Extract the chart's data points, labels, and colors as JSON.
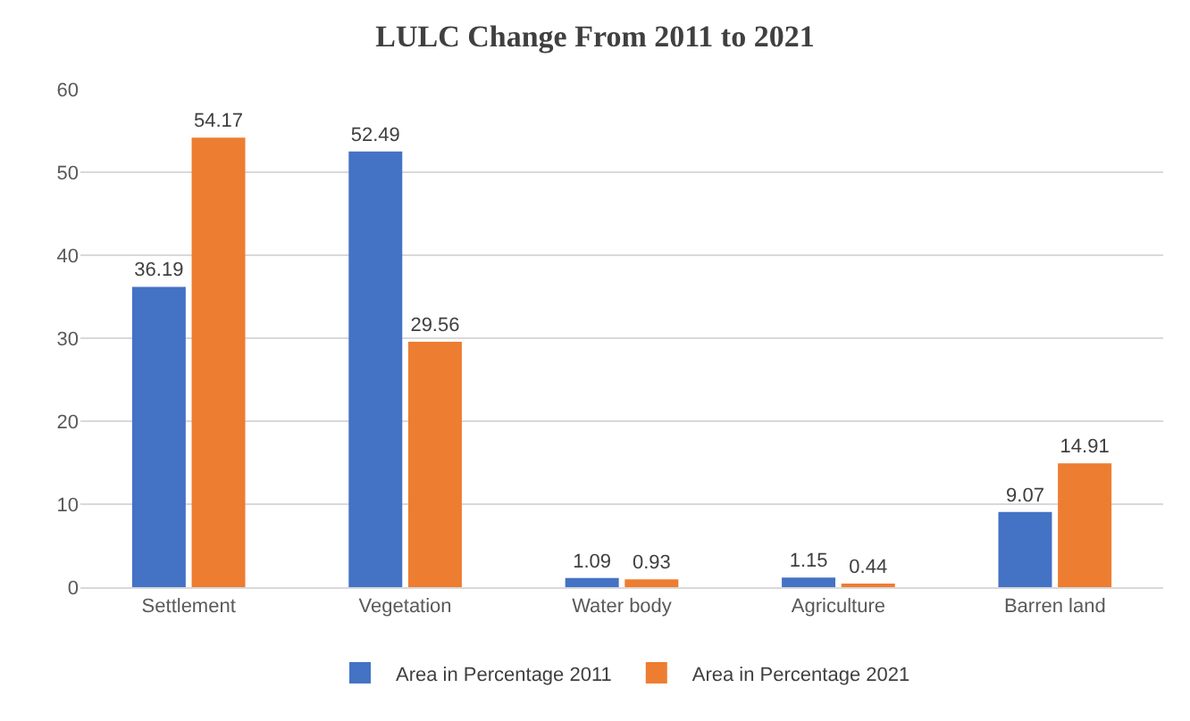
{
  "chart_data": {
    "type": "bar",
    "title": "LULC Change From 2011 to 2021",
    "categories": [
      "Settlement",
      "Vegetation",
      "Water body",
      "Agriculture",
      "Barren land"
    ],
    "series": [
      {
        "name": "Area in Percentage 2011",
        "color": "#4472c4",
        "values": [
          36.19,
          52.49,
          1.09,
          1.15,
          9.07
        ]
      },
      {
        "name": "Area in Percentage 2021",
        "color": "#ed7d31",
        "values": [
          54.17,
          29.56,
          0.93,
          0.44,
          14.91
        ]
      }
    ],
    "ylim": [
      0,
      60
    ],
    "yticks": [
      0,
      10,
      20,
      30,
      40,
      50,
      60
    ],
    "grid": "y",
    "legend": "bottom",
    "data_labels": true
  }
}
